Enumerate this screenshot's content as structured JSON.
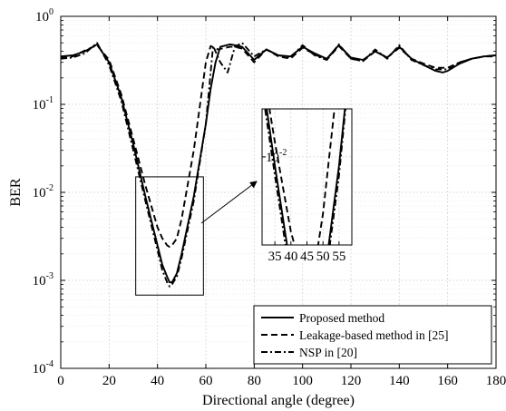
{
  "chart_data": {
    "type": "line",
    "title": "",
    "xlabel": "Directional angle (degree)",
    "ylabel": "BER",
    "xlim": [
      0,
      180
    ],
    "ylim": [
      0.0001,
      1
    ],
    "yscale": "log",
    "grid": "on",
    "legend_placement": "bottom-right",
    "x_ticks": [
      0,
      20,
      40,
      60,
      80,
      100,
      120,
      140,
      160,
      180
    ],
    "y_ticks": [
      {
        "value": 0.0001,
        "base": "10",
        "exp": "-4"
      },
      {
        "value": 0.001,
        "base": "10",
        "exp": "-3"
      },
      {
        "value": 0.01,
        "base": "10",
        "exp": "-2"
      },
      {
        "value": 0.1,
        "base": "10",
        "exp": "-1"
      },
      {
        "value": 1,
        "base": "10",
        "exp": "0"
      }
    ],
    "series": [
      {
        "name": "Proposed method",
        "dash": "solid",
        "x": [
          0,
          5,
          10,
          15,
          20,
          25,
          30,
          35,
          40,
          42,
          44,
          45,
          46,
          48,
          50,
          55,
          60,
          62,
          64,
          66,
          70,
          72,
          75,
          80,
          85,
          90,
          95,
          100,
          105,
          110,
          115,
          120,
          125,
          130,
          135,
          140,
          145,
          150,
          155,
          158,
          160,
          165,
          170,
          175,
          180
        ],
        "y": [
          0.35,
          0.36,
          0.4,
          0.48,
          0.3,
          0.12,
          0.035,
          0.009,
          0.0025,
          0.0015,
          0.0011,
          0.00095,
          0.00095,
          0.0012,
          0.002,
          0.009,
          0.06,
          0.15,
          0.3,
          0.45,
          0.48,
          0.47,
          0.45,
          0.32,
          0.42,
          0.36,
          0.35,
          0.45,
          0.38,
          0.33,
          0.47,
          0.34,
          0.32,
          0.4,
          0.34,
          0.45,
          0.33,
          0.28,
          0.24,
          0.23,
          0.24,
          0.29,
          0.33,
          0.35,
          0.36
        ]
      },
      {
        "name": "Leakage-based method in [25]",
        "dash": "dashed",
        "x": [
          0,
          5,
          10,
          15,
          20,
          25,
          30,
          35,
          40,
          42,
          44,
          45,
          46,
          48,
          50,
          55,
          58,
          60,
          62,
          65,
          70,
          72,
          75,
          80,
          85,
          90,
          95,
          100,
          105,
          110,
          115,
          120,
          125,
          130,
          135,
          140,
          145,
          150,
          155,
          160,
          165,
          170,
          175,
          180
        ],
        "y": [
          0.34,
          0.35,
          0.41,
          0.47,
          0.32,
          0.13,
          0.04,
          0.012,
          0.004,
          0.003,
          0.0025,
          0.0024,
          0.0025,
          0.003,
          0.005,
          0.03,
          0.12,
          0.3,
          0.46,
          0.42,
          0.45,
          0.45,
          0.43,
          0.3,
          0.42,
          0.35,
          0.33,
          0.44,
          0.37,
          0.32,
          0.46,
          0.33,
          0.31,
          0.4,
          0.34,
          0.44,
          0.33,
          0.29,
          0.26,
          0.26,
          0.3,
          0.33,
          0.35,
          0.35
        ]
      },
      {
        "name": "NSP in [20]",
        "dash": "dashdot",
        "x": [
          0,
          5,
          10,
          15,
          20,
          25,
          30,
          35,
          40,
          42,
          44,
          45,
          46,
          48,
          50,
          55,
          60,
          63,
          66,
          69,
          72,
          75,
          80,
          85,
          90,
          95,
          100,
          105,
          110,
          115,
          120,
          125,
          130,
          135,
          140,
          145,
          150,
          155,
          160,
          165,
          170,
          175,
          180
        ],
        "y": [
          0.33,
          0.34,
          0.38,
          0.5,
          0.28,
          0.11,
          0.03,
          0.008,
          0.0022,
          0.0013,
          0.00095,
          0.00085,
          0.0009,
          0.0011,
          0.0018,
          0.008,
          0.06,
          0.46,
          0.3,
          0.23,
          0.45,
          0.5,
          0.35,
          0.42,
          0.36,
          0.34,
          0.47,
          0.36,
          0.32,
          0.48,
          0.33,
          0.31,
          0.42,
          0.33,
          0.47,
          0.32,
          0.28,
          0.25,
          0.25,
          0.3,
          0.33,
          0.35,
          0.36
        ]
      }
    ],
    "zoom_box": {
      "x_range": [
        31,
        59
      ],
      "y_range": [
        0.00068,
        0.015
      ]
    },
    "inset": {
      "xlim": [
        31,
        59
      ],
      "ylim": [
        0.0034,
        0.018
      ],
      "x_ticks": [
        35,
        40,
        45,
        50,
        55
      ],
      "y_ticks": [
        {
          "value": 0.01,
          "base": "10",
          "exp": "-2"
        }
      ]
    }
  }
}
